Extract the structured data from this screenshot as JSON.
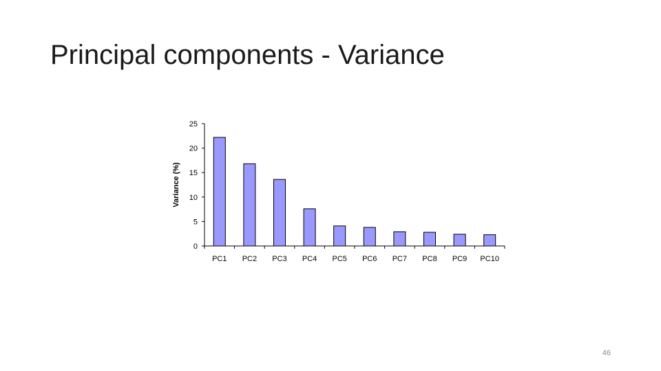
{
  "slide": {
    "title": "Principal components - Variance",
    "page_number": "46"
  },
  "colors": {
    "bar_fill": "#9999ff",
    "bar_stroke": "#000000",
    "axis": "#000000",
    "text": "#000000"
  },
  "chart_data": {
    "type": "bar",
    "title": "",
    "xlabel": "",
    "ylabel": "Variance (%)",
    "categories": [
      "PC1",
      "PC2",
      "PC3",
      "PC4",
      "PC5",
      "PC6",
      "PC7",
      "PC8",
      "PC9",
      "PC10"
    ],
    "values": [
      22.2,
      16.8,
      13.6,
      7.6,
      4.1,
      3.8,
      2.9,
      2.8,
      2.4,
      2.3
    ],
    "ylim": [
      0,
      25
    ],
    "yticks": [
      0,
      5,
      10,
      15,
      20,
      25
    ],
    "grid": false,
    "legend": "none"
  }
}
